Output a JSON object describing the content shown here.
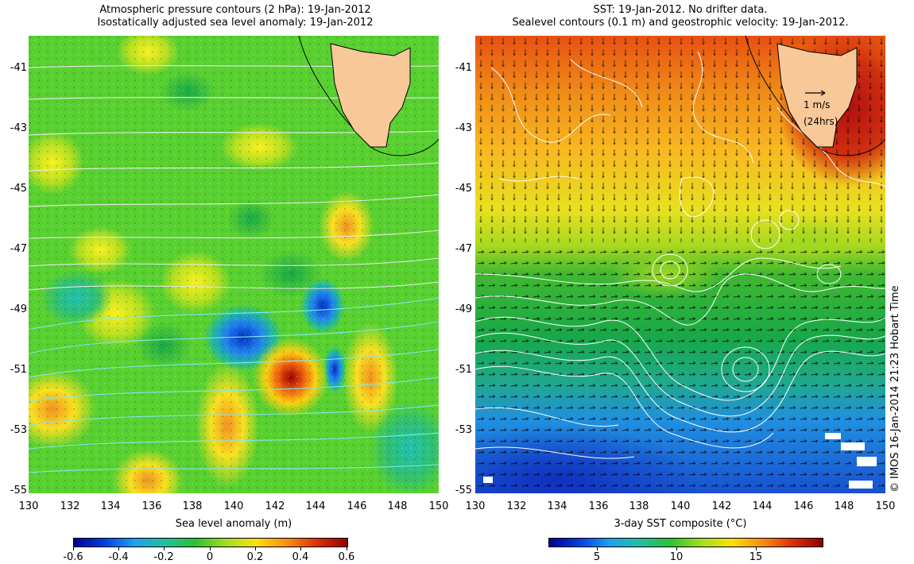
{
  "left": {
    "title_line1": "Atmospheric pressure contours (2 hPa): 19-Jan-2012",
    "title_line2": "Isostatically adjusted sea level anomaly: 19-Jan-2012",
    "colorbar_label": "Sea level anomaly (m)",
    "colorbar_ticks": [
      "-0.6",
      "-0.4",
      "-0.2",
      "0",
      "0.2",
      "0.4",
      "0.6"
    ]
  },
  "right": {
    "title_line1": "SST: 19-Jan-2012. No drifter data.",
    "title_line2": "Sealevel contours (0.1 m) and geostrophic velocity: 19-Jan-2012.",
    "colorbar_label": "3-day SST composite (°C)",
    "colorbar_ticks": [
      "5",
      "10",
      "15"
    ],
    "scale_arrow_label1": "1 m/s",
    "scale_arrow_label2": "(24hrs)"
  },
  "lat_ticks": [
    "-41",
    "-43",
    "-45",
    "-47",
    "-49",
    "-51",
    "-53",
    "-55"
  ],
  "lon_ticks": [
    "130",
    "132",
    "134",
    "136",
    "138",
    "140",
    "142",
    "144",
    "146",
    "148",
    "150"
  ],
  "credit": "© IMOS 16-Jan-2014 21:23 Hobart Time",
  "colors": {
    "land": "#f8c898",
    "anomaly_low": "#0020a0",
    "anomaly_high": "#a00000",
    "sst_cold": "#1040c0",
    "sst_warm": "#d03010"
  }
}
